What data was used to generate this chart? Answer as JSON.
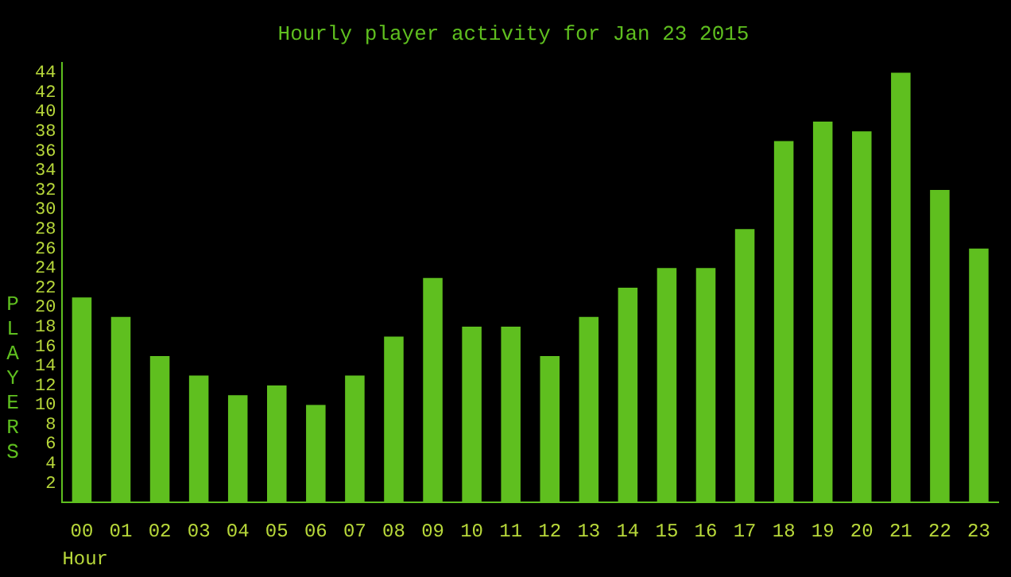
{
  "chart_data": {
    "type": "bar",
    "title": "Hourly player activity for Jan 23 2015",
    "xlabel": "Hour",
    "ylabel": "PLAYERS",
    "categories": [
      "00",
      "01",
      "02",
      "03",
      "04",
      "05",
      "06",
      "07",
      "08",
      "09",
      "10",
      "11",
      "12",
      "13",
      "14",
      "15",
      "16",
      "17",
      "18",
      "19",
      "20",
      "21",
      "22",
      "23"
    ],
    "values": [
      21,
      19,
      15,
      13,
      11,
      12,
      10,
      13,
      17,
      23,
      18,
      18,
      15,
      19,
      22,
      24,
      24,
      28,
      37,
      39,
      38,
      44,
      32,
      26
    ],
    "color": "#5fbf1f",
    "ylim": [
      0,
      45
    ],
    "yticks": [
      2,
      4,
      6,
      8,
      10,
      12,
      14,
      16,
      18,
      20,
      22,
      24,
      26,
      28,
      30,
      32,
      34,
      36,
      38,
      40,
      42,
      44
    ],
    "grid": false,
    "legend": false
  }
}
